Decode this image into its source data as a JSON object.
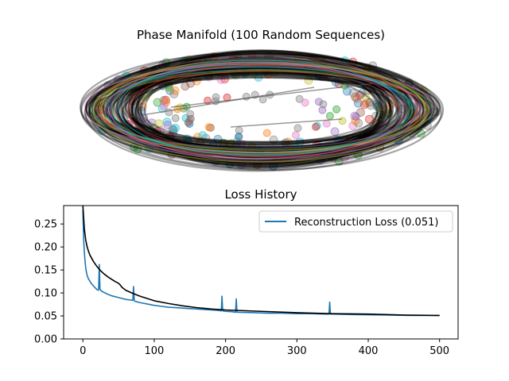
{
  "chart_data": [
    {
      "type": "scatter",
      "title": "Phase Manifold (100 Random Sequences)",
      "description_axes": "off",
      "series_count": 100,
      "palette": [
        "#1f77b4",
        "#ff7f0e",
        "#2ca02c",
        "#d62728",
        "#9467bd",
        "#8c564b",
        "#e377c2",
        "#7f7f7f",
        "#bcbd22",
        "#17becf"
      ],
      "trajectory_color": "#000000",
      "marker_alpha": 0.35
    },
    {
      "type": "line",
      "title": "Loss History",
      "xlabel": "",
      "ylabel": "",
      "xlim": [
        -27,
        526
      ],
      "ylim": [
        0.0,
        0.29
      ],
      "xticks": [
        0,
        100,
        200,
        300,
        400,
        500
      ],
      "yticks": [
        0.0,
        0.05,
        0.1,
        0.15,
        0.2,
        0.25
      ],
      "xtick_labels": [
        "0",
        "100",
        "200",
        "300",
        "400",
        "500"
      ],
      "ytick_labels": [
        "0.00",
        "0.05",
        "0.10",
        "0.15",
        "0.20",
        "0.25"
      ],
      "legend_placement": "upper-right",
      "series": [
        {
          "name": "Reconstruction Loss (0.051)",
          "color": "#1f77b4",
          "x": [
            0,
            1,
            2,
            3,
            4,
            5,
            6,
            8,
            10,
            12,
            15,
            18,
            20,
            22,
            23,
            24,
            26,
            30,
            35,
            40,
            45,
            50,
            55,
            60,
            65,
            70,
            71,
            72,
            73,
            75,
            80,
            90,
            100,
            110,
            120,
            130,
            140,
            150,
            160,
            170,
            180,
            190,
            194,
            195,
            196,
            200,
            210,
            214,
            215,
            216,
            220,
            240,
            260,
            280,
            300,
            320,
            340,
            345,
            346,
            347,
            350,
            380,
            420,
            460,
            500
          ],
          "y": [
            0.28,
            0.22,
            0.19,
            0.17,
            0.155,
            0.145,
            0.138,
            0.13,
            0.125,
            0.12,
            0.115,
            0.11,
            0.107,
            0.106,
            0.162,
            0.108,
            0.104,
            0.101,
            0.097,
            0.094,
            0.092,
            0.09,
            0.088,
            0.086,
            0.085,
            0.084,
            0.114,
            0.083,
            0.082,
            0.081,
            0.079,
            0.076,
            0.073,
            0.071,
            0.069,
            0.068,
            0.067,
            0.066,
            0.065,
            0.064,
            0.063,
            0.062,
            0.061,
            0.093,
            0.061,
            0.06,
            0.059,
            0.058,
            0.087,
            0.058,
            0.058,
            0.057,
            0.056,
            0.056,
            0.055,
            0.055,
            0.054,
            0.054,
            0.08,
            0.054,
            0.054,
            0.053,
            0.052,
            0.051,
            0.051
          ]
        },
        {
          "color": "#000000",
          "x": [
            0,
            2,
            4,
            6,
            8,
            10,
            15,
            20,
            25,
            30,
            35,
            40,
            45,
            50,
            52,
            55,
            60,
            70,
            80,
            90,
            100,
            120,
            140,
            160,
            180,
            200,
            250,
            300,
            350,
            400,
            450,
            500
          ],
          "y": [
            0.29,
            0.24,
            0.215,
            0.2,
            0.19,
            0.182,
            0.168,
            0.157,
            0.148,
            0.141,
            0.135,
            0.13,
            0.125,
            0.121,
            0.118,
            0.112,
            0.106,
            0.099,
            0.093,
            0.088,
            0.083,
            0.077,
            0.072,
            0.068,
            0.065,
            0.063,
            0.06,
            0.057,
            0.055,
            0.054,
            0.052,
            0.051
          ]
        }
      ]
    }
  ]
}
